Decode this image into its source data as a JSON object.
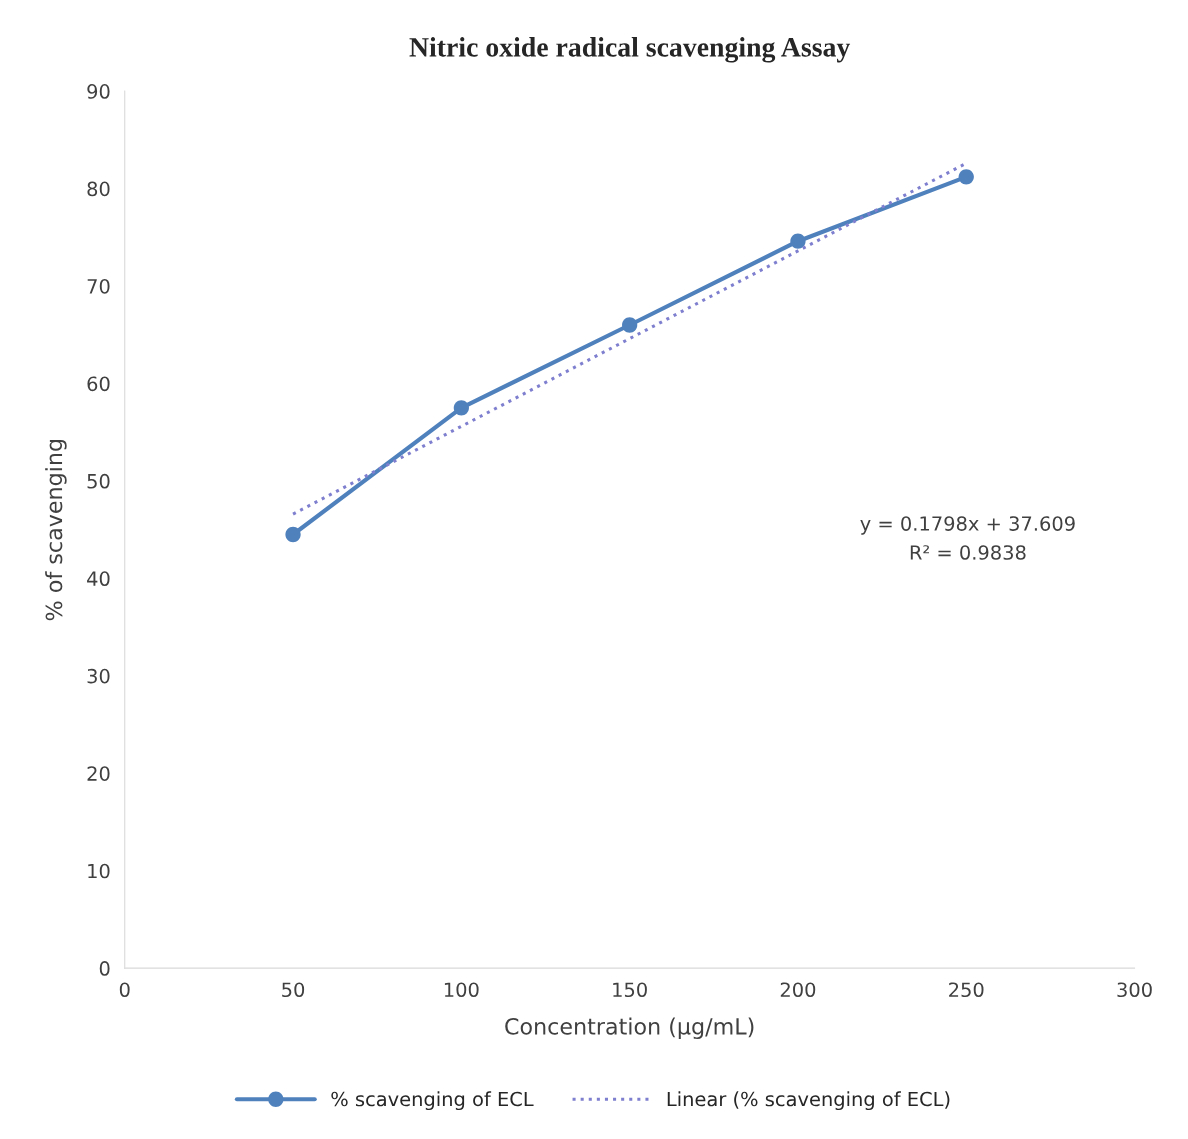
{
  "chart_data": {
    "type": "line",
    "title": "Nitric oxide radical scavenging Assay",
    "xlabel": "Concentration (µg/mL)",
    "ylabel": "% of scavenging",
    "x": [
      50,
      100,
      150,
      200,
      250
    ],
    "series": [
      {
        "name": "% scavenging of ECL",
        "color": "#4f81bd",
        "values": [
          44.5,
          57.5,
          66.0,
          74.6,
          81.2
        ],
        "marker": "circle",
        "line_style": "solid"
      },
      {
        "name": "Linear (% scavenging of ECL)",
        "color": "#7f7fcf",
        "type": "line",
        "x": [
          50,
          250
        ],
        "values": [
          46.6,
          82.6
        ],
        "marker": "none",
        "line_style": "dotted"
      }
    ],
    "annotations": [
      "y = 0.1798x + 37.609",
      "R² = 0.9838"
    ],
    "xlim": [
      0,
      300
    ],
    "xticks": [
      0,
      50,
      100,
      150,
      200,
      250,
      300
    ],
    "ylim": [
      0,
      90
    ],
    "yticks": [
      0,
      10,
      20,
      30,
      40,
      50,
      60,
      70,
      80,
      90
    ],
    "grid": false,
    "legend": "bottom"
  }
}
